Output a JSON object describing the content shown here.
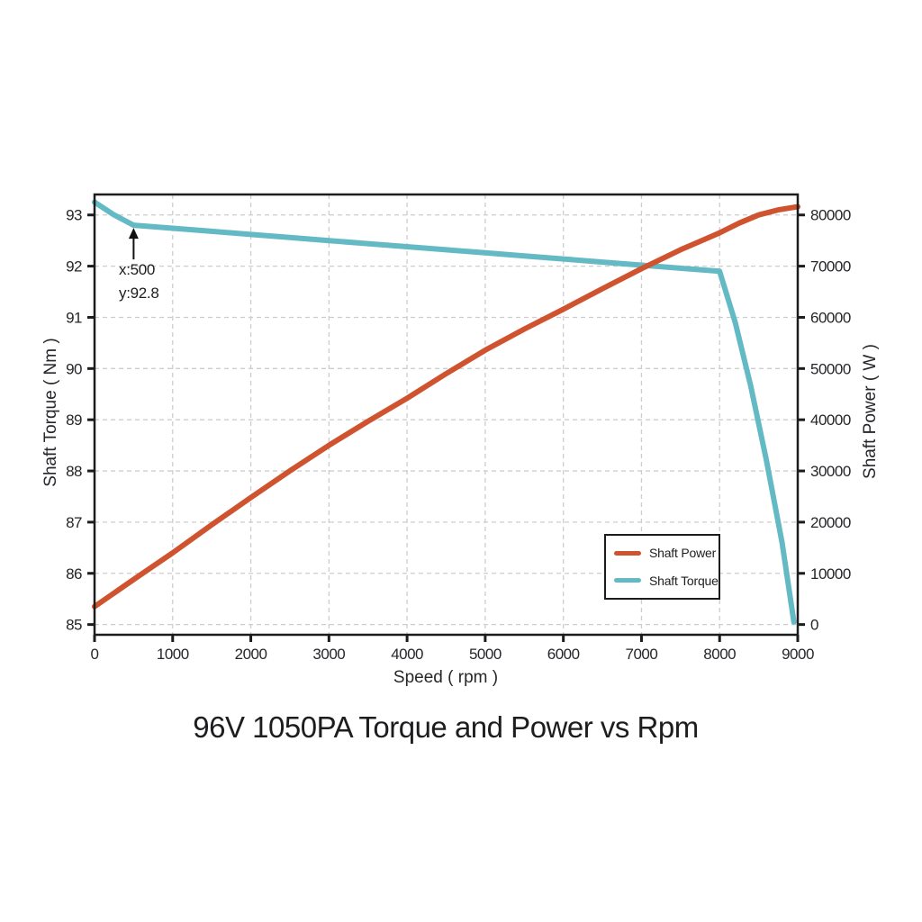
{
  "page": {
    "background": "#ffffff"
  },
  "chart_data": {
    "type": "line",
    "title": "96V 1050PA Torque and Power vs Rpm",
    "xlabel": "Speed ( rpm )",
    "ylabel_left": "Shaft Torque ( Nm )",
    "ylabel_right": "Shaft Power ( W )",
    "xlim": [
      0,
      9000
    ],
    "xticks": [
      0,
      1000,
      2000,
      3000,
      4000,
      5000,
      6000,
      7000,
      8000,
      9000
    ],
    "ylim_left": [
      84.8,
      93.4
    ],
    "yticks_left": [
      85,
      86,
      87,
      88,
      89,
      90,
      91,
      92,
      93
    ],
    "ylim_right": [
      -2000,
      84000
    ],
    "yticks_right": [
      0,
      10000,
      20000,
      30000,
      40000,
      50000,
      60000,
      70000,
      80000
    ],
    "grid": true,
    "grid_color": "#cdcdcd",
    "axis_color": "#1c1c1c",
    "tick_label_color": "#26262b",
    "annotation": {
      "lines": [
        "x:500",
        "y:92.8"
      ],
      "x": 500,
      "y": 92.8,
      "axis": "left"
    },
    "legend": {
      "position": "lower-right",
      "entries": [
        {
          "label": "Shaft Power",
          "color": "#d0532f"
        },
        {
          "label": "Shaft Torque",
          "color": "#63bac4"
        }
      ]
    },
    "series": [
      {
        "name": "Shaft Power",
        "axis": "right",
        "color": "#d0532f",
        "x": [
          0,
          500,
          1000,
          1500,
          2000,
          2500,
          3000,
          3500,
          4000,
          4500,
          5000,
          5500,
          6000,
          6500,
          7000,
          7500,
          8000,
          8250,
          8500,
          8750,
          9000
        ],
        "y": [
          3500,
          8800,
          14000,
          19500,
          24800,
          30000,
          35000,
          39700,
          44200,
          49000,
          53600,
          57700,
          61600,
          65600,
          69500,
          73200,
          76500,
          78400,
          80000,
          81000,
          81600
        ]
      },
      {
        "name": "Shaft Torque",
        "axis": "left",
        "color": "#63bac4",
        "x": [
          0,
          250,
          500,
          1000,
          1500,
          2000,
          2500,
          3000,
          3500,
          4000,
          4500,
          5000,
          5500,
          6000,
          6500,
          7000,
          7500,
          8000,
          8200,
          8400,
          8600,
          8800,
          8950
        ],
        "y": [
          93.25,
          93.0,
          92.8,
          92.74,
          92.68,
          92.62,
          92.56,
          92.5,
          92.44,
          92.38,
          92.32,
          92.26,
          92.2,
          92.14,
          92.08,
          92.02,
          91.96,
          91.9,
          90.9,
          89.65,
          88.2,
          86.6,
          85.05
        ]
      }
    ]
  }
}
